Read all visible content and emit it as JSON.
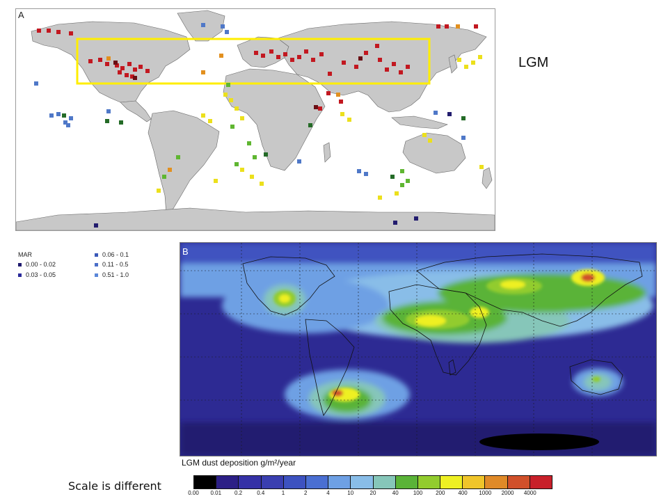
{
  "panel_a": {
    "letter": "A",
    "legend": {
      "title": "MAR",
      "items": [
        {
          "label": "0.00 - 0.02",
          "color": "#1f1a6e"
        },
        {
          "label": "0.03 - 0.05",
          "color": "#2a2a9a"
        },
        {
          "label": "0.06 - 0.1",
          "color": "#3a58b8"
        },
        {
          "label": "0.11 - 0.5",
          "color": "#4a6ec8"
        },
        {
          "label": "0.51 - 1.0",
          "color": "#5a86d8"
        }
      ]
    }
  },
  "panel_b": {
    "letter": "B",
    "colorbar_title": "LGM dust deposition g/m²/year",
    "colorbar": {
      "ticks": [
        "0.00",
        "0.01",
        "0.2",
        "0.4",
        "1",
        "2",
        "4",
        "10",
        "20",
        "40",
        "100",
        "200",
        "400",
        "1000",
        "2000",
        "4000"
      ],
      "colors": [
        "#000000",
        "#2c1f86",
        "#3531a6",
        "#3a3fb0",
        "#3d52c0",
        "#4a6fd2",
        "#6ea0e4",
        "#89bde8",
        "#86c6b9",
        "#5ab338",
        "#92cc2e",
        "#eef023",
        "#f0c52a",
        "#e08a28",
        "#d0502a",
        "#c8202a"
      ]
    }
  },
  "side_label": "LGM",
  "note": "Scale is different",
  "highlight_color": "#ffee00"
}
